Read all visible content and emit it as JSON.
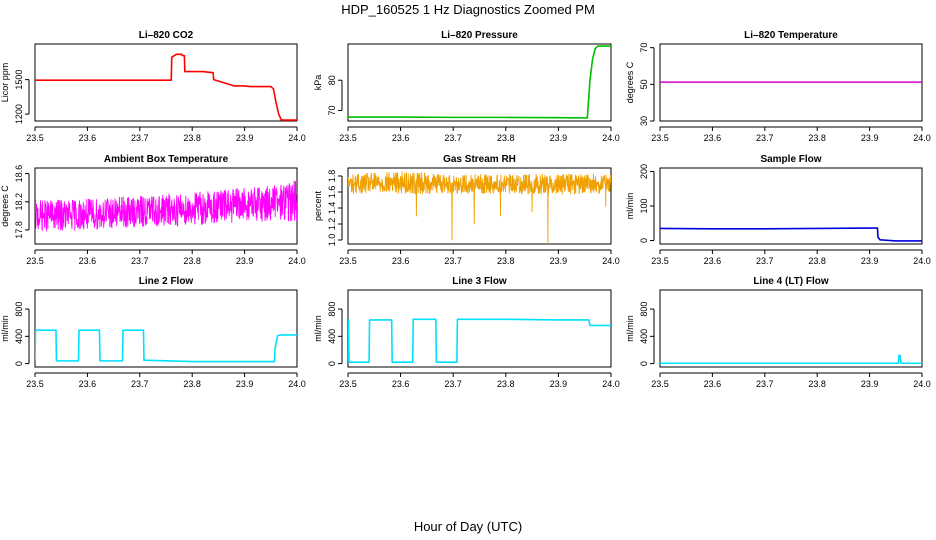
{
  "figure": {
    "title": "HDP_160525  1 Hz Diagnostics Zoomed PM",
    "xlabel": "Hour of Day (UTC)"
  },
  "chart_data": [
    {
      "type": "line",
      "title": "Li–820 CO2",
      "ylabel": "Licor ppm",
      "color": "#ff0000",
      "xlim": [
        23.5,
        24.0
      ],
      "ylim": [
        1140,
        1810
      ],
      "xticks": [
        23.5,
        23.6,
        23.7,
        23.8,
        23.9,
        24.0
      ],
      "yticks": [
        1200,
        1500
      ],
      "series": [
        {
          "name": "Li-820 CO2",
          "x": [
            23.5,
            23.76,
            23.761,
            23.77,
            23.78,
            23.781,
            23.785,
            23.786,
            23.8,
            23.82,
            23.84,
            23.841,
            23.87,
            23.88,
            23.9,
            23.91,
            23.92,
            23.95,
            23.955,
            23.96,
            23.965,
            23.97,
            23.975,
            24.0
          ],
          "y": [
            1495,
            1495,
            1695,
            1720,
            1720,
            1710,
            1710,
            1570,
            1570,
            1570,
            1560,
            1500,
            1460,
            1445,
            1445,
            1440,
            1440,
            1440,
            1420,
            1300,
            1200,
            1150,
            1148,
            1148
          ]
        }
      ]
    },
    {
      "type": "line",
      "title": "Li–820 Pressure",
      "ylabel": "kPa",
      "color": "#00c000",
      "xlim": [
        23.5,
        24.0
      ],
      "ylim": [
        66.5,
        92.0
      ],
      "xticks": [
        23.5,
        23.6,
        23.7,
        23.8,
        23.9,
        24.0
      ],
      "yticks": [
        70,
        80
      ],
      "series": [
        {
          "name": "Li-820 Pressure",
          "x": [
            23.5,
            23.6,
            23.7,
            23.8,
            23.9,
            23.95,
            23.955,
            23.96,
            23.965,
            23.97,
            23.975,
            24.0
          ],
          "y": [
            67.8,
            67.8,
            67.7,
            67.7,
            67.6,
            67.5,
            67.5,
            80.0,
            87.0,
            90.5,
            91.3,
            91.3
          ]
        }
      ]
    },
    {
      "type": "line",
      "title": "Li–820 Temperature",
      "ylabel": "degrees C",
      "color": "#cc00cc",
      "xlim": [
        23.5,
        24.0
      ],
      "ylim": [
        30,
        72
      ],
      "xticks": [
        23.5,
        23.6,
        23.7,
        23.8,
        23.9,
        24.0
      ],
      "yticks": [
        30,
        50,
        70
      ],
      "series": [
        {
          "name": "Li-820 Temperature",
          "x": [
            23.5,
            24.0
          ],
          "y": [
            51.2,
            51.2
          ]
        }
      ]
    },
    {
      "type": "line",
      "title": "Ambient Box Temperature",
      "ylabel": "degrees C",
      "color": "#ff00ff",
      "noisy": true,
      "xlim": [
        23.5,
        24.0
      ],
      "ylim": [
        17.6,
        18.68
      ],
      "xticks": [
        23.5,
        23.6,
        23.7,
        23.8,
        23.9,
        24.0
      ],
      "yticks": [
        17.8,
        18.2,
        18.6
      ],
      "series": [
        {
          "name": "Ambient Box Temperature",
          "x": [
            23.5,
            23.6,
            23.7,
            23.8,
            23.9,
            23.95,
            24.0
          ],
          "y": [
            18.0,
            18.02,
            18.06,
            18.1,
            18.16,
            18.18,
            18.22
          ],
          "noise_amplitude": [
            0.22,
            0.22,
            0.22,
            0.24,
            0.24,
            0.26,
            0.3
          ]
        }
      ]
    },
    {
      "type": "line",
      "title": "Gas Stream RH",
      "ylabel": "percent",
      "color": "#f0a000",
      "noisy": true,
      "xlim": [
        23.5,
        24.0
      ],
      "ylim": [
        0.95,
        1.9
      ],
      "xticks": [
        23.5,
        23.6,
        23.7,
        23.8,
        23.9,
        24.0
      ],
      "yticks": [
        1.0,
        1.2,
        1.4,
        1.6,
        1.8
      ],
      "series": [
        {
          "name": "Gas Stream RH",
          "x": [
            23.5,
            23.6,
            23.7,
            23.8,
            23.9,
            24.0
          ],
          "y": [
            1.7,
            1.72,
            1.7,
            1.7,
            1.7,
            1.7
          ],
          "noise_amplitude": [
            0.12,
            0.14,
            0.12,
            0.12,
            0.13,
            0.12
          ],
          "dips": [
            {
              "x": 23.698,
              "y": 1.0
            },
            {
              "x": 23.63,
              "y": 1.3
            },
            {
              "x": 23.74,
              "y": 1.2
            },
            {
              "x": 23.79,
              "y": 1.3
            },
            {
              "x": 23.88,
              "y": 0.95
            },
            {
              "x": 23.85,
              "y": 1.35
            },
            {
              "x": 23.99,
              "y": 1.42
            }
          ]
        }
      ]
    },
    {
      "type": "line",
      "title": "Sample Flow",
      "ylabel": "ml/min",
      "color": "#0000dd",
      "xlim": [
        23.5,
        24.0
      ],
      "ylim": [
        -10,
        210
      ],
      "xticks": [
        23.5,
        23.6,
        23.7,
        23.8,
        23.9,
        24.0
      ],
      "yticks": [
        0,
        100,
        200
      ],
      "series": [
        {
          "name": "Sample Flow",
          "x": [
            23.5,
            23.6,
            23.7,
            23.8,
            23.9,
            23.915,
            23.916,
            23.92,
            23.93,
            23.95,
            24.0
          ],
          "y": [
            35,
            34,
            34,
            35,
            36,
            36,
            10,
            2,
            1,
            -1,
            -1
          ]
        }
      ]
    },
    {
      "type": "line",
      "title": "Line 2 Flow",
      "ylabel": "ml/min",
      "color": "#00e0ff",
      "xlim": [
        23.5,
        24.0
      ],
      "ylim": [
        -50,
        1080
      ],
      "xticks": [
        23.5,
        23.6,
        23.7,
        23.8,
        23.9,
        24.0
      ],
      "yticks": [
        0,
        400,
        800
      ],
      "series": [
        {
          "name": "Line 2 Flow",
          "x": [
            23.5,
            23.501,
            23.54,
            23.541,
            23.583,
            23.584,
            23.623,
            23.624,
            23.667,
            23.668,
            23.707,
            23.708,
            23.8,
            23.957,
            23.958,
            23.963,
            23.97,
            24.0
          ],
          "y": [
            50,
            490,
            490,
            40,
            40,
            490,
            490,
            40,
            40,
            490,
            490,
            50,
            30,
            30,
            220,
            410,
            420,
            420
          ]
        }
      ]
    },
    {
      "type": "line",
      "title": "Line 3 Flow",
      "ylabel": "ml/min",
      "color": "#00e0ff",
      "xlim": [
        23.5,
        24.0
      ],
      "ylim": [
        -50,
        1080
      ],
      "xticks": [
        23.5,
        23.6,
        23.7,
        23.8,
        23.9,
        24.0
      ],
      "yticks": [
        0,
        400,
        800
      ],
      "series": [
        {
          "name": "Line 3 Flow",
          "x": [
            23.5,
            23.501,
            23.502,
            23.54,
            23.541,
            23.583,
            23.584,
            23.623,
            23.624,
            23.667,
            23.668,
            23.707,
            23.708,
            23.8,
            23.9,
            23.958,
            23.96,
            24.0
          ],
          "y": [
            20,
            640,
            20,
            20,
            640,
            640,
            20,
            20,
            650,
            650,
            20,
            20,
            650,
            650,
            640,
            640,
            560,
            560
          ]
        }
      ]
    },
    {
      "type": "line",
      "title": "Line 4 (LT) Flow",
      "ylabel": "ml/min",
      "color": "#00e0ff",
      "xlim": [
        23.5,
        24.0
      ],
      "ylim": [
        -50,
        1080
      ],
      "xticks": [
        23.5,
        23.6,
        23.7,
        23.8,
        23.9,
        24.0
      ],
      "yticks": [
        0,
        400,
        800
      ],
      "series": [
        {
          "name": "Line 4 (LT) Flow",
          "x": [
            23.5,
            23.9,
            23.955,
            23.956,
            23.958,
            23.96,
            24.0
          ],
          "y": [
            5,
            5,
            5,
            120,
            120,
            5,
            5
          ]
        }
      ]
    }
  ]
}
